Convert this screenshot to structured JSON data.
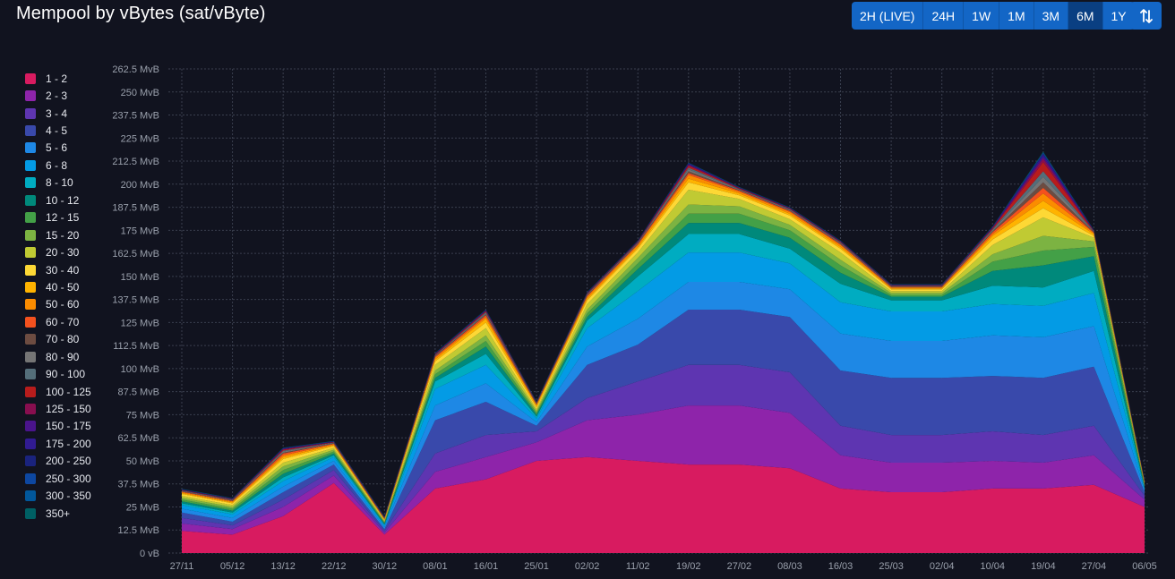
{
  "header": {
    "title": "Mempool by vBytes (sat/vByte)"
  },
  "range_buttons": [
    {
      "label": "2H (LIVE)",
      "active": false
    },
    {
      "label": "24H",
      "active": false
    },
    {
      "label": "1W",
      "active": false
    },
    {
      "label": "1M",
      "active": false
    },
    {
      "label": "3M",
      "active": false
    },
    {
      "label": "6M",
      "active": true
    },
    {
      "label": "1Y",
      "active": false
    }
  ],
  "toggle_icon": "swap-vertical-icon",
  "chart_data": {
    "type": "area",
    "stacked": true,
    "title": "Mempool by vBytes (sat/vByte)",
    "yunit": "MvB",
    "ylim": [
      0,
      262.5
    ],
    "yticks": [
      "0 vB",
      "12.5 MvB",
      "25 MvB",
      "37.5 MvB",
      "50 MvB",
      "62.5 MvB",
      "75 MvB",
      "87.5 MvB",
      "100 MvB",
      "112.5 MvB",
      "125 MvB",
      "137.5 MvB",
      "150 MvB",
      "162.5 MvB",
      "175 MvB",
      "187.5 MvB",
      "200 MvB",
      "212.5 MvB",
      "225 MvB",
      "237.5 MvB",
      "250 MvB",
      "262.5 MvB"
    ],
    "xticks": [
      "27/11",
      "05/12",
      "13/12",
      "22/12",
      "30/12",
      "08/01",
      "16/01",
      "25/01",
      "02/02",
      "11/02",
      "19/02",
      "27/02",
      "08/03",
      "16/03",
      "25/03",
      "02/04",
      "10/04",
      "19/04",
      "27/04",
      "06/05"
    ],
    "grid": true,
    "legend_position": "left",
    "legend": [
      {
        "label": "1 - 2",
        "color": "#d81b60"
      },
      {
        "label": "2 - 3",
        "color": "#8e24aa"
      },
      {
        "label": "3 - 4",
        "color": "#5e35b1"
      },
      {
        "label": "4 - 5",
        "color": "#3949ab"
      },
      {
        "label": "5 - 6",
        "color": "#1e88e5"
      },
      {
        "label": "6 - 8",
        "color": "#039be5"
      },
      {
        "label": "8 - 10",
        "color": "#00acc1"
      },
      {
        "label": "10 - 12",
        "color": "#00897b"
      },
      {
        "label": "12 - 15",
        "color": "#43a047"
      },
      {
        "label": "15 - 20",
        "color": "#7cb342"
      },
      {
        "label": "20 - 30",
        "color": "#c0ca33"
      },
      {
        "label": "30 - 40",
        "color": "#fdd835"
      },
      {
        "label": "40 - 50",
        "color": "#ffb300"
      },
      {
        "label": "50 - 60",
        "color": "#fb8c00"
      },
      {
        "label": "60 - 70",
        "color": "#f4511e"
      },
      {
        "label": "70 - 80",
        "color": "#6d4c41"
      },
      {
        "label": "80 - 90",
        "color": "#757575"
      },
      {
        "label": "90 - 100",
        "color": "#546e7a"
      },
      {
        "label": "100 - 125",
        "color": "#b71c1c"
      },
      {
        "label": "125 - 150",
        "color": "#880e4f"
      },
      {
        "label": "150 - 175",
        "color": "#4a148c"
      },
      {
        "label": "175 - 200",
        "color": "#311b92"
      },
      {
        "label": "200 - 250",
        "color": "#1a237e"
      },
      {
        "label": "250 - 300",
        "color": "#0d47a1"
      },
      {
        "label": "300 - 350",
        "color": "#01579b"
      },
      {
        "label": "350+",
        "color": "#006064"
      }
    ],
    "x": [
      "27/11",
      "05/12",
      "13/12",
      "22/12",
      "30/12",
      "08/01",
      "16/01",
      "25/01",
      "02/02",
      "11/02",
      "19/02",
      "27/02",
      "08/03",
      "16/03",
      "25/03",
      "02/04",
      "10/04",
      "19/04",
      "27/04",
      "06/05"
    ],
    "series": [
      {
        "name": "1 - 2",
        "values": [
          12,
          10,
          20,
          38,
          10,
          35,
          40,
          50,
          52,
          50,
          48,
          48,
          46,
          35,
          33,
          33,
          35,
          35,
          37,
          25
        ]
      },
      {
        "name": "2 - 3",
        "values": [
          4,
          3,
          5,
          4,
          1,
          9,
          12,
          10,
          20,
          25,
          32,
          32,
          30,
          18,
          16,
          16,
          15,
          14,
          16,
          4
        ]
      },
      {
        "name": "3 - 4",
        "values": [
          3,
          2,
          4,
          3,
          1,
          10,
          12,
          6,
          12,
          18,
          22,
          22,
          22,
          16,
          15,
          15,
          16,
          15,
          16,
          2
        ]
      },
      {
        "name": "4 - 5",
        "values": [
          3,
          2,
          4,
          3,
          1,
          18,
          18,
          3,
          18,
          20,
          30,
          30,
          30,
          30,
          31,
          31,
          30,
          31,
          32,
          2
        ]
      },
      {
        "name": "5 - 6",
        "values": [
          2,
          2,
          3,
          2,
          1,
          8,
          10,
          2,
          10,
          14,
          15,
          15,
          15,
          20,
          20,
          20,
          22,
          22,
          22,
          1
        ]
      },
      {
        "name": "6 - 8",
        "values": [
          2,
          2,
          3,
          2,
          1,
          9,
          10,
          2,
          10,
          15,
          16,
          16,
          14,
          17,
          16,
          16,
          17,
          17,
          18,
          1
        ]
      },
      {
        "name": "8 - 10",
        "values": [
          1,
          1,
          2,
          1,
          0.5,
          4,
          6,
          1,
          4,
          8,
          10,
          10,
          8,
          10,
          6,
          6,
          10,
          10,
          12,
          0.5
        ]
      },
      {
        "name": "10 - 12",
        "values": [
          1,
          1,
          2,
          1,
          0.5,
          2,
          4,
          1,
          2,
          4,
          6,
          6,
          6,
          6,
          2,
          2,
          8,
          12,
          8,
          0.5
        ]
      },
      {
        "name": "12 - 15",
        "values": [
          1,
          1,
          2,
          1,
          0.5,
          2,
          3,
          1,
          2,
          3,
          5,
          5,
          4,
          4,
          1,
          1,
          5,
          8,
          5,
          0.5
        ]
      },
      {
        "name": "15 - 20",
        "values": [
          1,
          1,
          2,
          1,
          0.5,
          2,
          3,
          1,
          2,
          3,
          5,
          4,
          3,
          3,
          1,
          1,
          4,
          8,
          3,
          0.5
        ]
      },
      {
        "name": "20 - 30",
        "values": [
          1,
          1,
          2,
          1,
          0.5,
          3,
          4,
          1,
          3,
          3,
          8,
          4,
          3,
          4,
          1,
          1,
          5,
          10,
          2,
          0.5
        ]
      },
      {
        "name": "30 - 40",
        "values": [
          1,
          1,
          2,
          1,
          0.5,
          2,
          3,
          1,
          2,
          2,
          4,
          2,
          2,
          2,
          1,
          1,
          3,
          5,
          1,
          0.5
        ]
      },
      {
        "name": "40 - 50",
        "values": [
          0.5,
          0.5,
          1,
          0.5,
          0.3,
          1,
          2,
          1,
          1,
          1,
          2,
          1,
          1,
          1,
          0.5,
          0.5,
          2,
          4,
          1,
          0.3
        ]
      },
      {
        "name": "50 - 60",
        "values": [
          0.5,
          0.5,
          1,
          0.5,
          0.3,
          1,
          1,
          0.5,
          1,
          1,
          2,
          1,
          1,
          1,
          0.5,
          0.5,
          1,
          4,
          0.5,
          0.3
        ]
      },
      {
        "name": "60 - 70",
        "values": [
          0.3,
          0.3,
          1,
          0.3,
          0.2,
          0.5,
          1,
          0.3,
          0.5,
          0.5,
          1,
          0.5,
          0.5,
          0.5,
          0.3,
          0.3,
          1,
          3,
          0.3,
          0.2
        ]
      },
      {
        "name": "70 - 80",
        "values": [
          0.2,
          0.2,
          0.5,
          0.2,
          0.1,
          0.3,
          0.5,
          0.2,
          0.3,
          0.3,
          1,
          0.3,
          0.3,
          0.3,
          0.2,
          0.2,
          0.5,
          3,
          0.2,
          0.1
        ]
      },
      {
        "name": "80 - 90",
        "values": [
          0.2,
          0.2,
          0.5,
          0.2,
          0.1,
          0.3,
          0.5,
          0.2,
          0.3,
          0.3,
          1,
          0.3,
          0.3,
          0.3,
          0.2,
          0.2,
          0.5,
          3,
          0.2,
          0.1
        ]
      },
      {
        "name": "90 - 100",
        "values": [
          0.2,
          0.2,
          0.5,
          0.2,
          0.1,
          0.3,
          0.5,
          0.2,
          0.3,
          0.3,
          1,
          0.3,
          0.3,
          0.3,
          0.2,
          0.2,
          0.5,
          3,
          0.2,
          0.1
        ]
      },
      {
        "name": "100 - 125",
        "values": [
          0.2,
          0.2,
          0.5,
          0.2,
          0.1,
          0.3,
          0.5,
          0.2,
          0.3,
          0.3,
          1,
          0.3,
          0.3,
          0.3,
          0.2,
          0.2,
          0.5,
          5,
          0.2,
          0.1
        ]
      },
      {
        "name": "125 - 150",
        "values": [
          0.1,
          0.1,
          0.3,
          0.1,
          0.1,
          0.2,
          0.3,
          0.1,
          0.2,
          0.2,
          0.5,
          0.2,
          0.2,
          0.2,
          0.1,
          0.1,
          0.3,
          2,
          0.1,
          0.1
        ]
      },
      {
        "name": "150 - 175",
        "values": [
          0.1,
          0.1,
          0.2,
          0.1,
          0.1,
          0.1,
          0.2,
          0.1,
          0.1,
          0.1,
          0.3,
          0.1,
          0.1,
          0.1,
          0.1,
          0.1,
          0.2,
          1,
          0.1,
          0.1
        ]
      },
      {
        "name": "175 - 200",
        "values": [
          0.1,
          0.1,
          0.2,
          0.1,
          0.1,
          0.1,
          0.2,
          0.1,
          0.1,
          0.1,
          0.3,
          0.1,
          0.1,
          0.1,
          0.1,
          0.1,
          0.2,
          1,
          0.1,
          0.1
        ]
      },
      {
        "name": "200 - 250",
        "values": [
          0.1,
          0.1,
          0.1,
          0.1,
          0.1,
          0.1,
          0.1,
          0.1,
          0.1,
          0.1,
          0.2,
          0.1,
          0.1,
          0.1,
          0.1,
          0.1,
          0.1,
          0.5,
          0.1,
          0.1
        ]
      },
      {
        "name": "250 - 300",
        "values": [
          0.1,
          0.1,
          0.1,
          0.1,
          0.1,
          0.1,
          0.1,
          0.1,
          0.1,
          0.1,
          0.2,
          0.1,
          0.1,
          0.1,
          0.1,
          0.1,
          0.1,
          0.5,
          0.1,
          0.1
        ]
      },
      {
        "name": "300 - 350",
        "values": [
          0.1,
          0.1,
          0.1,
          0.1,
          0.1,
          0.1,
          0.1,
          0.1,
          0.1,
          0.1,
          0.1,
          0.1,
          0.1,
          0.1,
          0.1,
          0.1,
          0.1,
          0.3,
          0.1,
          0.1
        ]
      },
      {
        "name": "350+",
        "values": [
          0.1,
          0.1,
          0.1,
          0.1,
          0.1,
          0.1,
          0.1,
          0.1,
          0.1,
          0.1,
          0.1,
          0.1,
          0.1,
          0.1,
          0.1,
          0.1,
          0.1,
          0.3,
          0.1,
          0.1
        ]
      }
    ]
  }
}
